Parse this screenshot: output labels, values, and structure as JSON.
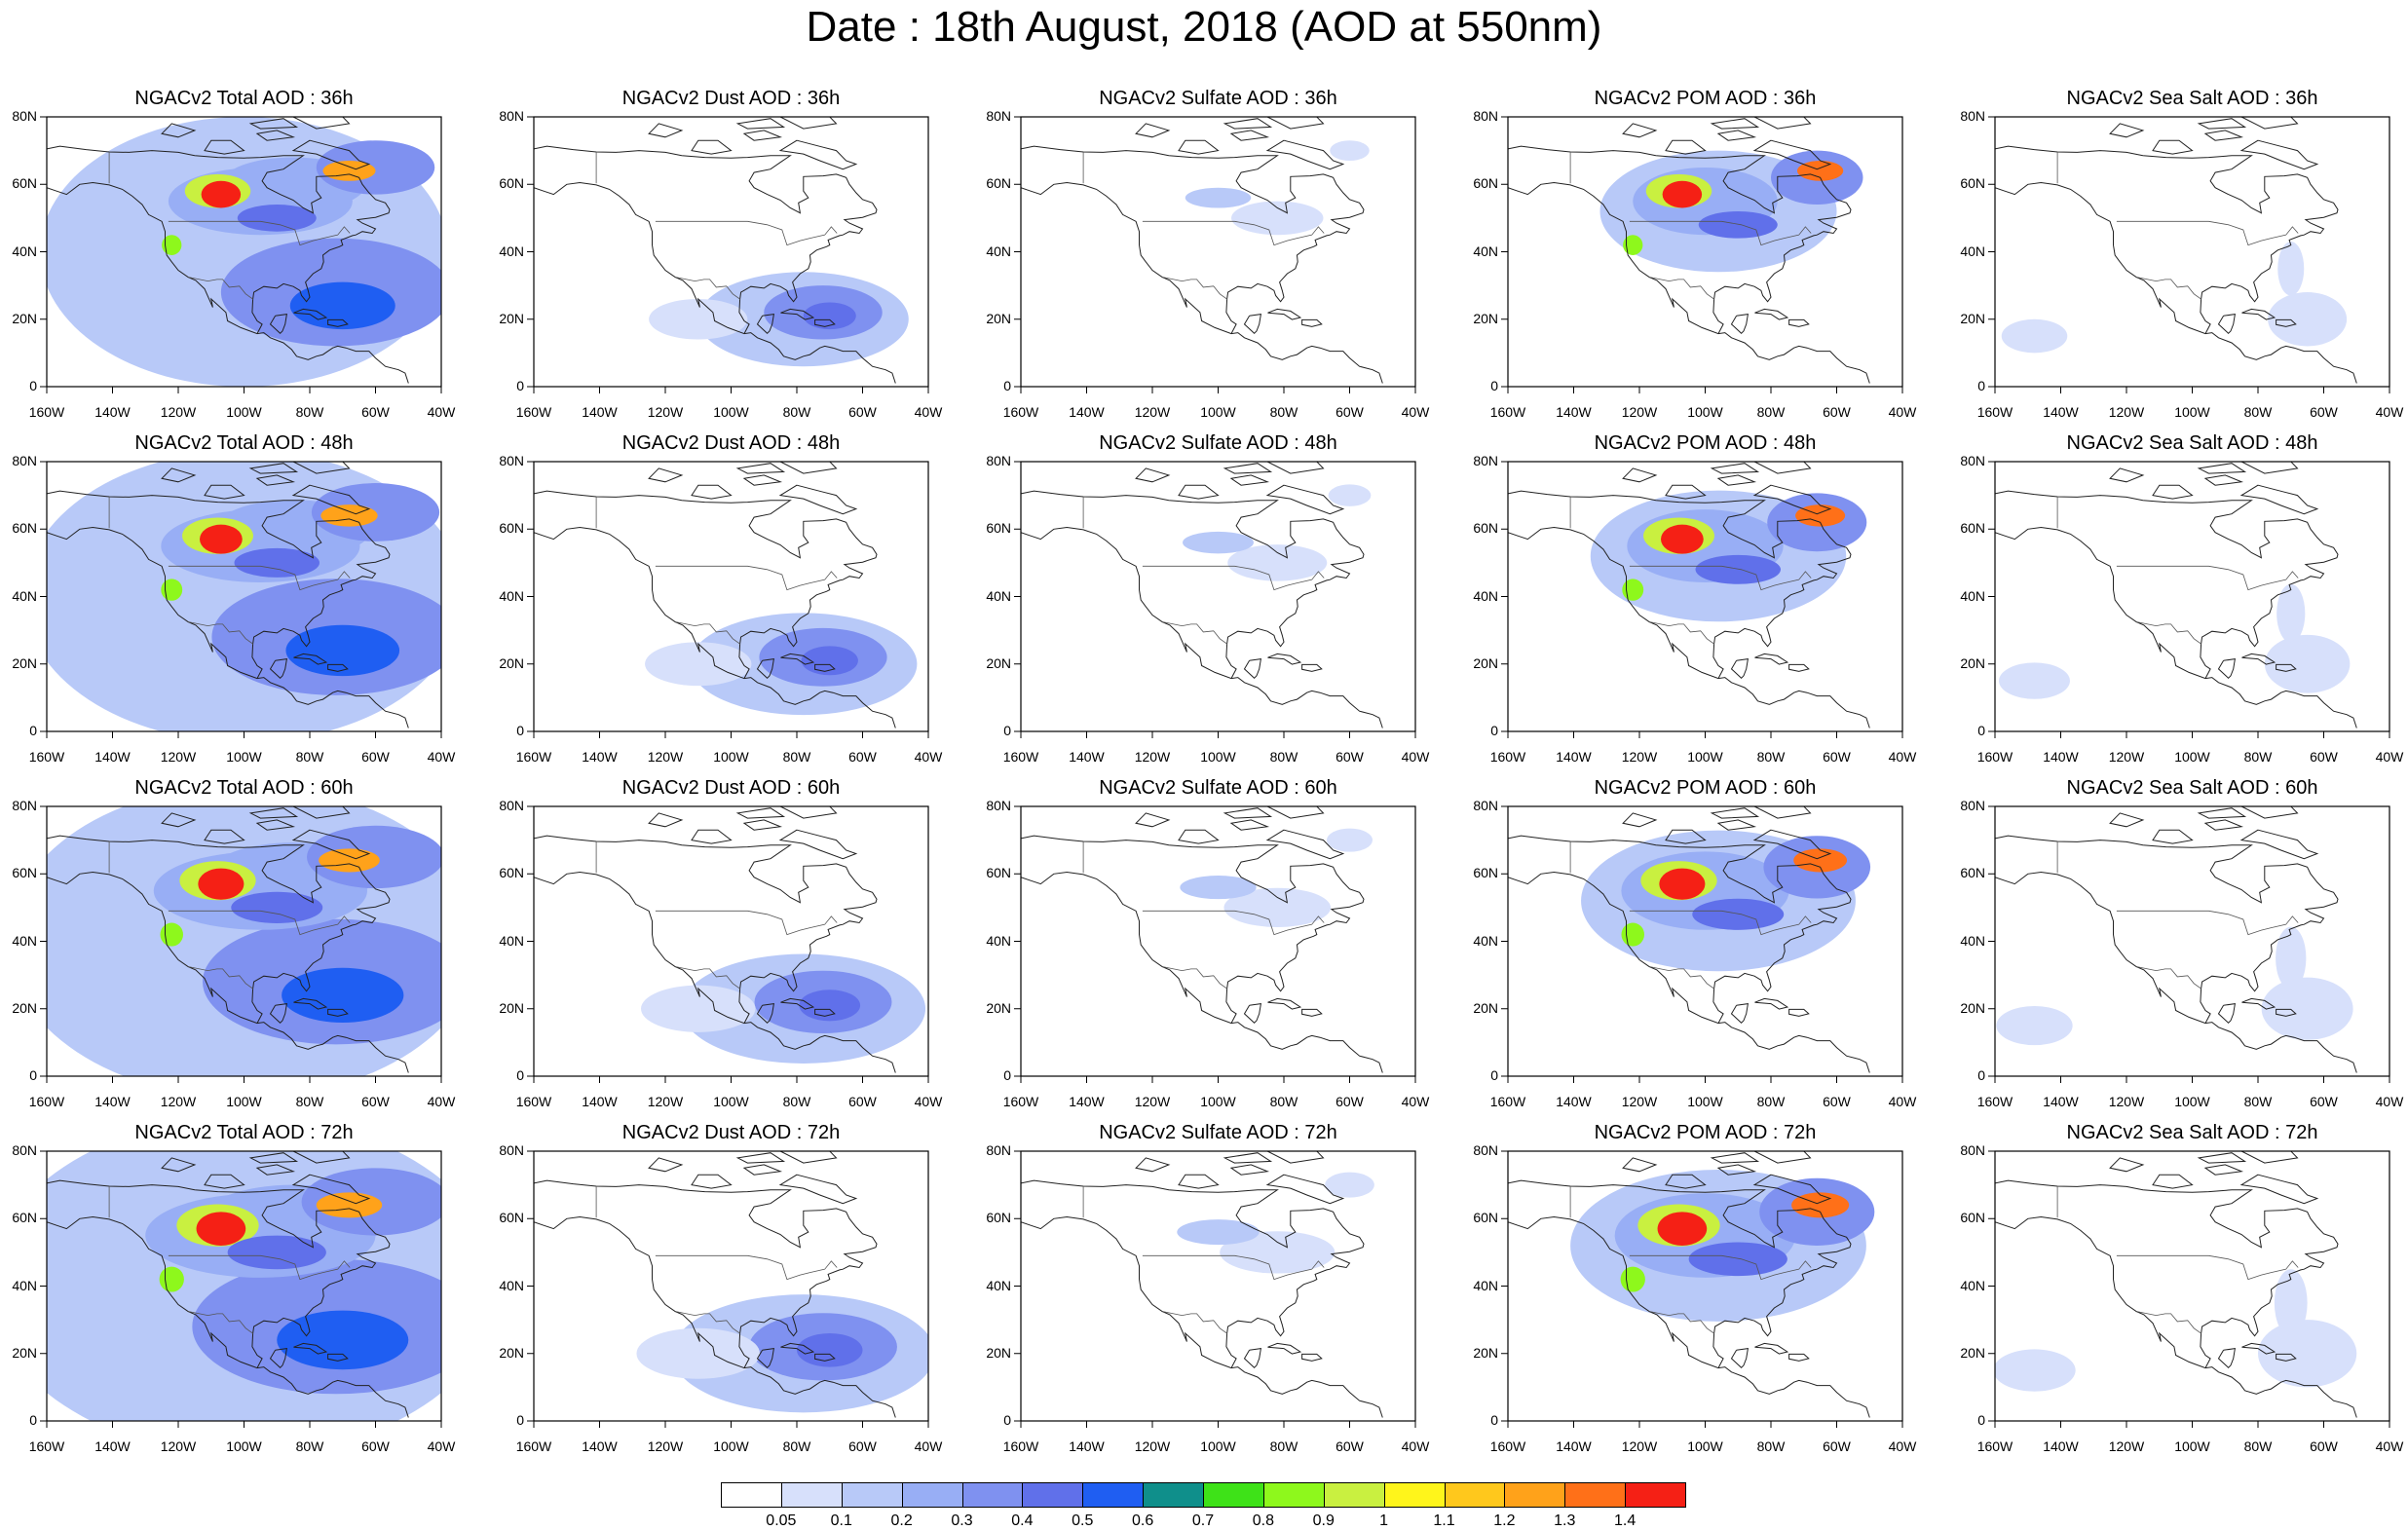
{
  "title": "Date : 18th August, 2018 (AOD at 550nm)",
  "rows": [
    {
      "hour": "36h",
      "titles": [
        "NGACv2 Total AOD : 36h",
        "NGACv2 Dust AOD : 36h",
        "NGACv2 Sulfate AOD : 36h",
        "NGACv2 POM AOD : 36h",
        "NGACv2 Sea Salt AOD : 36h"
      ]
    },
    {
      "hour": "48h",
      "titles": [
        "NGACv2 Total AOD : 48h",
        "NGACv2 Dust AOD : 48h",
        "NGACv2 Sulfate AOD : 48h",
        "NGACv2 POM AOD : 48h",
        "NGACv2 Sea Salt AOD : 48h"
      ]
    },
    {
      "hour": "60h",
      "titles": [
        "NGACv2 Total AOD : 60h",
        "NGACv2 Dust AOD : 60h",
        "NGACv2 Sulfate AOD : 60h",
        "NGACv2 POM AOD : 60h",
        "NGACv2 Sea Salt AOD : 60h"
      ]
    },
    {
      "hour": "72h",
      "titles": [
        "NGACv2 Total AOD : 72h",
        "NGACv2 Dust AOD : 72h",
        "NGACv2 Sulfate AOD : 72h",
        "NGACv2 POM AOD : 72h",
        "NGACv2 Sea Salt  AOD : 72h"
      ]
    }
  ],
  "species": [
    "Total",
    "Dust",
    "Sulfate",
    "POM",
    "Sea Salt"
  ],
  "map": {
    "lon_range": [
      -160,
      -40
    ],
    "lat_range": [
      0,
      80
    ],
    "x_ticks": [
      "160W",
      "140W",
      "120W",
      "100W",
      "80W",
      "60W",
      "40W"
    ],
    "y_ticks": [
      "0",
      "20N",
      "40N",
      "60N",
      "80N"
    ]
  },
  "colorbar": {
    "labels": [
      "0.05",
      "0.1",
      "0.2",
      "0.3",
      "0.4",
      "0.5",
      "0.6",
      "0.7",
      "0.8",
      "0.9",
      "1",
      "1.1",
      "1.2",
      "1.3",
      "1.4"
    ],
    "colors": [
      "#ffffff",
      "#d7e0fb",
      "#b8c9f8",
      "#98aef5",
      "#7f91f0",
      "#6070ea",
      "#1f5ef2",
      "#0f8f8b",
      "#3ee218",
      "#8ef81c",
      "#c9f040",
      "#fff51b",
      "#ffc81c",
      "#ffa21a",
      "#ff7018",
      "#f52015"
    ]
  }
}
